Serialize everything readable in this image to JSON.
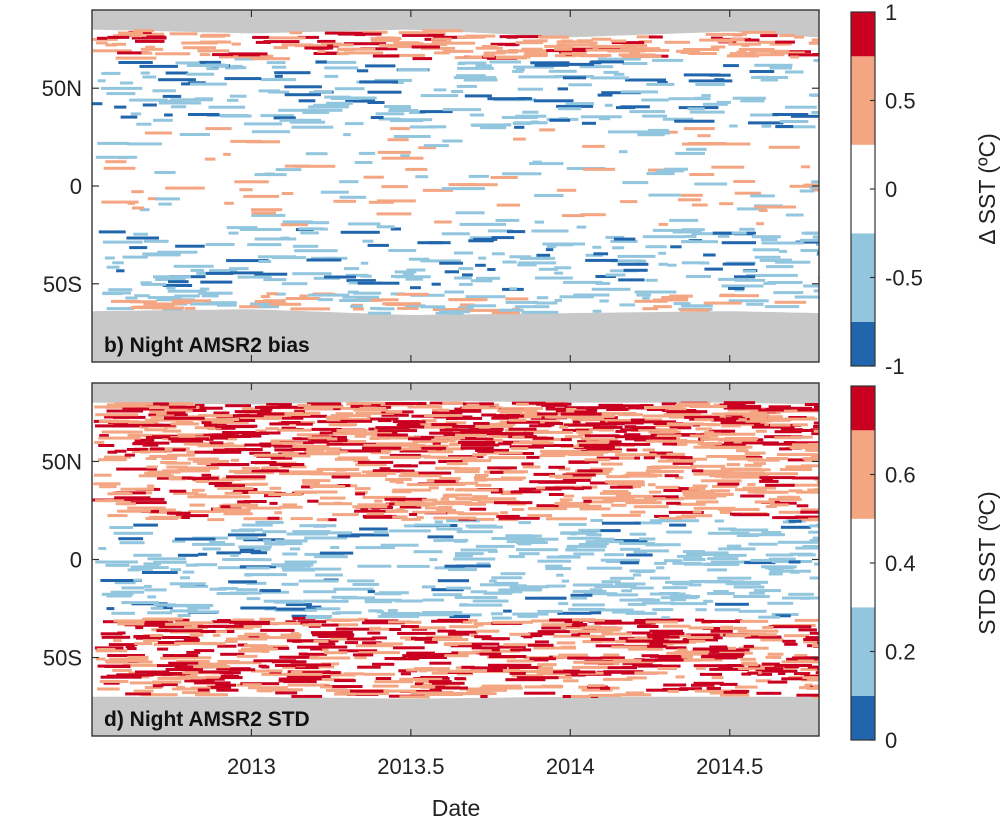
{
  "chart_data": [
    {
      "type": "heatmap",
      "panel_label": "b) Night AMSR2 bias",
      "y_ticks": [
        {
          "value": 50,
          "label": "50N"
        },
        {
          "value": 0,
          "label": "0"
        },
        {
          "value": -50,
          "label": "50S"
        }
      ],
      "ylim": [
        -90,
        90
      ],
      "xlim": [
        2012.5,
        2014.78
      ],
      "colorbar": {
        "label": "Δ SST (ºC)",
        "range": [
          -1,
          1
        ],
        "ticks": [
          {
            "value": 1,
            "label": "1"
          },
          {
            "value": 0.5,
            "label": "0.5"
          },
          {
            "value": 0,
            "label": "0"
          },
          {
            "value": -0.5,
            "label": "-0.5"
          },
          {
            "value": -1,
            "label": "-1"
          }
        ],
        "bins": [
          {
            "from": -1,
            "to": -0.75,
            "color": "#2166ac"
          },
          {
            "from": -0.75,
            "to": -0.25,
            "color": "#92c5de"
          },
          {
            "from": -0.25,
            "to": 0.25,
            "color": "#ffffff"
          },
          {
            "from": 0.25,
            "to": 0.75,
            "color": "#f4a582"
          },
          {
            "from": 0.75,
            "to": 1,
            "color": "#ca0020"
          }
        ]
      },
      "missing_color": "#c8c8c8",
      "data_extent": [
        {
          "x": 2012.5,
          "lat_min": -64,
          "lat_max": 80
        },
        {
          "x": 2013.0,
          "lat_min": -63,
          "lat_max": 78
        },
        {
          "x": 2013.5,
          "lat_min": -66,
          "lat_max": 80
        },
        {
          "x": 2014.0,
          "lat_min": -65,
          "lat_max": 76
        },
        {
          "x": 2014.5,
          "lat_min": -64,
          "lat_max": 79
        },
        {
          "x": 2014.78,
          "lat_min": -65,
          "lat_max": 76
        }
      ],
      "bands": [
        {
          "lat_min": 65,
          "lat_max": 80,
          "typical_value": 0.5
        },
        {
          "lat_min": 30,
          "lat_max": 65,
          "typical_value": -0.5
        },
        {
          "lat_min": -20,
          "lat_max": 30,
          "typical_value": 0
        },
        {
          "lat_min": -55,
          "lat_max": -20,
          "typical_value": -0.5
        },
        {
          "lat_min": -66,
          "lat_max": -55,
          "typical_value": 0
        }
      ]
    },
    {
      "type": "heatmap",
      "panel_label": "d) Night AMSR2 STD",
      "y_ticks": [
        {
          "value": 50,
          "label": "50N"
        },
        {
          "value": 0,
          "label": "0"
        },
        {
          "value": -50,
          "label": "50S"
        }
      ],
      "ylim": [
        -90,
        90
      ],
      "xlim": [
        2012.5,
        2014.78
      ],
      "x_ticks": [
        {
          "value": 2013,
          "label": "2013"
        },
        {
          "value": 2013.5,
          "label": "2013.5"
        },
        {
          "value": 2014,
          "label": "2014"
        },
        {
          "value": 2014.5,
          "label": "2014.5"
        }
      ],
      "xlabel": "Date",
      "colorbar": {
        "label": "STD SST (ºC)",
        "range": [
          0,
          0.8
        ],
        "ticks": [
          {
            "value": 0.6,
            "label": "0.6"
          },
          {
            "value": 0.4,
            "label": "0.4"
          },
          {
            "value": 0.2,
            "label": "0.2"
          },
          {
            "value": 0,
            "label": "0"
          }
        ],
        "bins": [
          {
            "from": 0,
            "to": 0.1,
            "color": "#2166ac"
          },
          {
            "from": 0.1,
            "to": 0.3,
            "color": "#92c5de"
          },
          {
            "from": 0.3,
            "to": 0.5,
            "color": "#ffffff"
          },
          {
            "from": 0.5,
            "to": 0.7,
            "color": "#f4a582"
          },
          {
            "from": 0.7,
            "to": 0.8,
            "color": "#ca0020"
          }
        ]
      },
      "missing_color": "#c8c8c8",
      "data_extent": [
        {
          "x": 2012.5,
          "lat_min": -70,
          "lat_max": 80
        },
        {
          "x": 2013.0,
          "lat_min": -70,
          "lat_max": 79
        },
        {
          "x": 2013.5,
          "lat_min": -71,
          "lat_max": 81
        },
        {
          "x": 2014.0,
          "lat_min": -70,
          "lat_max": 80
        },
        {
          "x": 2014.5,
          "lat_min": -70,
          "lat_max": 80
        },
        {
          "x": 2014.78,
          "lat_min": -70,
          "lat_max": 79
        }
      ],
      "bands": [
        {
          "lat_min": 55,
          "lat_max": 80,
          "typical_value": 0.7
        },
        {
          "lat_min": 20,
          "lat_max": 55,
          "typical_value": 0.6
        },
        {
          "lat_min": -30,
          "lat_max": 20,
          "typical_value": 0.25
        },
        {
          "lat_min": -70,
          "lat_max": -30,
          "typical_value": 0.7
        }
      ]
    }
  ]
}
